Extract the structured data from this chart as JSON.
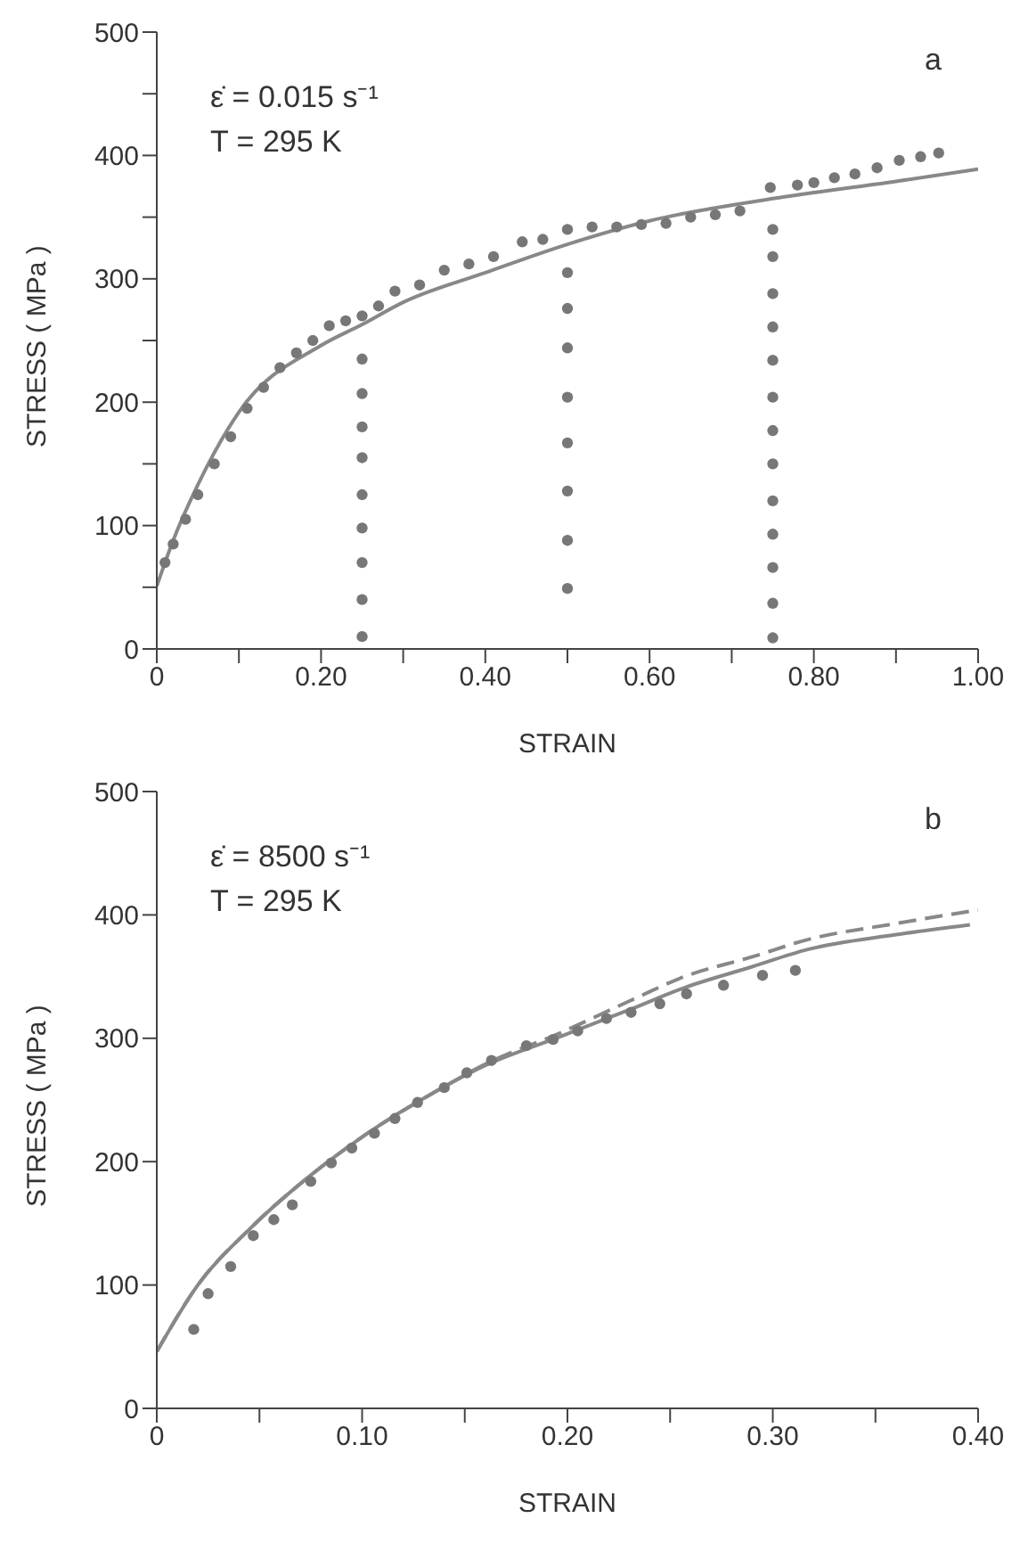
{
  "chart_data": [
    {
      "type": "scatter",
      "xlabel": "STRAIN",
      "ylabel": "STRESS ( MPa )",
      "annotations": [
        "ε̇ = 0.015 s⁻¹",
        "T = 295 K",
        "a"
      ],
      "xlim": [
        0,
        1
      ],
      "ylim": [
        0,
        500
      ],
      "xticks": [
        {
          "value": 0,
          "label": "0"
        },
        {
          "value": 0.1,
          "label": null
        },
        {
          "value": 0.2,
          "label": "0.20"
        },
        {
          "value": 0.3,
          "label": null
        },
        {
          "value": 0.4,
          "label": "0.40"
        },
        {
          "value": 0.5,
          "label": null
        },
        {
          "value": 0.6,
          "label": "0.60"
        },
        {
          "value": 0.7,
          "label": null
        },
        {
          "value": 0.8,
          "label": "0.80"
        },
        {
          "value": 0.9,
          "label": null
        },
        {
          "value": 1,
          "label": "1.00"
        }
      ],
      "yticks": [
        0,
        {
          "value": 50,
          "label": null
        },
        100,
        {
          "value": 150,
          "label": null
        },
        200,
        {
          "value": 250,
          "label": null
        },
        300,
        {
          "value": 350,
          "label": null
        },
        400,
        {
          "value": 450,
          "label": null
        },
        500
      ],
      "grid": false,
      "series": [
        {
          "marker": "circle",
          "color": "#777777",
          "x": [
            0.01,
            0.02,
            0.035,
            0.05,
            0.07,
            0.09,
            0.11,
            0.13,
            0.15,
            0.17,
            0.19,
            0.21,
            0.23,
            0.25,
            0.27,
            0.29,
            0.32,
            0.35,
            0.38,
            0.41,
            0.445,
            0.47,
            0.5,
            0.53,
            0.56,
            0.59,
            0.62,
            0.65,
            0.68,
            0.71,
            0.747,
            0.78,
            0.8,
            0.825,
            0.85,
            0.877,
            0.904,
            0.93,
            0.952
          ],
          "values": [
            70,
            85,
            105,
            125,
            150,
            172,
            195,
            212,
            228,
            240,
            250,
            262,
            266,
            270,
            278,
            290,
            295,
            307,
            312,
            318,
            330,
            332,
            340,
            342,
            342,
            344,
            345,
            350,
            352,
            355,
            374,
            376,
            378,
            382,
            385,
            390,
            396,
            399,
            402
          ]
        },
        {
          "marker": "circle",
          "color": "#777777",
          "x": [
            0.25,
            0.25,
            0.25,
            0.25,
            0.25,
            0.25,
            0.25,
            0.25,
            0.25
          ],
          "values": [
            235,
            207,
            180,
            155,
            125,
            98,
            70,
            40,
            10
          ]
        },
        {
          "marker": "circle",
          "color": "#777777",
          "x": [
            0.5,
            0.5,
            0.5,
            0.5,
            0.5,
            0.5,
            0.5,
            0.5
          ],
          "values": [
            305,
            276,
            244,
            204,
            167,
            128,
            88,
            49
          ]
        },
        {
          "marker": "circle",
          "color": "#777777",
          "x": [
            0.75,
            0.75,
            0.75,
            0.75,
            0.75,
            0.75,
            0.75,
            0.75,
            0.75,
            0.75,
            0.75,
            0.75,
            0.75
          ],
          "values": [
            340,
            318,
            288,
            261,
            234,
            204,
            177,
            150,
            120,
            93,
            66,
            37,
            9
          ]
        },
        {
          "type": "line",
          "marker": "none",
          "line_style": "solid",
          "color": "#888888",
          "x": [
            0,
            0.02,
            0.05,
            0.1,
            0.2,
            0.25,
            0.3,
            0.4,
            0.5,
            0.6,
            0.75,
            0.9,
            1
          ],
          "values": [
            51,
            88,
            133,
            192,
            246,
            263,
            281,
            305,
            328,
            347,
            365,
            379,
            389
          ]
        }
      ]
    },
    {
      "type": "scatter",
      "xlabel": "STRAIN",
      "ylabel": "STRESS ( MPa )",
      "annotations": [
        "ε̇ = 8500 s⁻¹",
        "T = 295 K",
        "b"
      ],
      "xlim": [
        0,
        0.4
      ],
      "ylim": [
        0,
        500
      ],
      "xticks": [
        {
          "value": 0,
          "label": "0"
        },
        {
          "value": 0.05,
          "label": null
        },
        {
          "value": 0.1,
          "label": "0.10"
        },
        {
          "value": 0.15,
          "label": null
        },
        {
          "value": 0.2,
          "label": "0.20"
        },
        {
          "value": 0.25,
          "label": null
        },
        {
          "value": 0.3,
          "label": "0.30"
        },
        {
          "value": 0.35,
          "label": null
        },
        {
          "value": 0.4,
          "label": "0.40"
        }
      ],
      "yticks": [
        0,
        100,
        200,
        300,
        400,
        500
      ],
      "grid": false,
      "series": [
        {
          "marker": "circle",
          "color": "#777777",
          "x": [
            0.018,
            0.025,
            0.036,
            0.047,
            0.057,
            0.066,
            0.075,
            0.085,
            0.095,
            0.106,
            0.116,
            0.127,
            0.14,
            0.151,
            0.163,
            0.18,
            0.193,
            0.205,
            0.219,
            0.231,
            0.245,
            0.258,
            0.276,
            0.295,
            0.311
          ],
          "values": [
            64,
            93,
            115,
            140,
            153,
            165,
            184,
            199,
            211,
            223,
            235,
            248,
            260,
            272,
            282,
            294,
            299,
            306,
            316,
            321,
            328,
            336,
            343,
            351,
            355
          ]
        },
        {
          "type": "line",
          "marker": "none",
          "line_style": "solid",
          "color": "#888888",
          "x": [
            0,
            0.02,
            0.045,
            0.075,
            0.1,
            0.136,
            0.16,
            0.196,
            0.23,
            0.257,
            0.29,
            0.317,
            0.36,
            0.396
          ],
          "values": [
            46,
            100,
            145,
            189,
            220,
            257,
            278,
            301,
            323,
            341,
            358,
            372,
            384,
            392
          ]
        },
        {
          "type": "line",
          "marker": "none",
          "line_style": "dashed",
          "color": "#888888",
          "x": [
            0,
            0.02,
            0.045,
            0.075,
            0.1,
            0.136,
            0.16,
            0.196,
            0.23,
            0.257,
            0.29,
            0.317,
            0.36,
            0.4
          ],
          "values": [
            46,
            100,
            145,
            189,
            220,
            257,
            279,
            304,
            330,
            350,
            366,
            380,
            393,
            404
          ]
        }
      ]
    }
  ]
}
